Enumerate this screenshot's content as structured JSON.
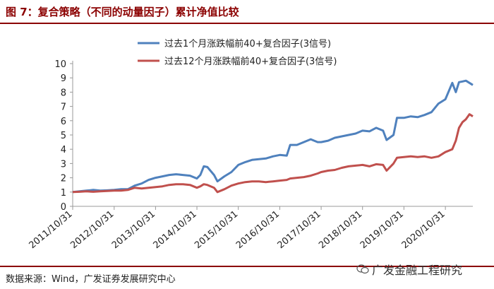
{
  "header": {
    "title": "图 7：复合策略（不同的动量因子）累计净值比较"
  },
  "footer": {
    "source": "数据来源：Wind，广发证券发展研究中心",
    "watermark": "广发金融工程研究"
  },
  "chart_data": {
    "type": "line",
    "title": "",
    "xlabel": "",
    "ylabel": "",
    "ylim": [
      0,
      10
    ],
    "yticks": [
      "0",
      "1",
      "2",
      "3",
      "4",
      "5",
      "6",
      "7",
      "8",
      "9",
      "10"
    ],
    "x_ticks": [
      "2011/10/31",
      "2012/10/31",
      "2013/10/31",
      "2014/10/31",
      "2015/10/31",
      "2016/10/31",
      "2017/10/31",
      "2018/10/31",
      "2019/10/31",
      "2020/10/31"
    ],
    "legend_position": "top",
    "x_range": [
      "2011-10-31",
      "2021-06-30"
    ],
    "series": [
      {
        "name": "过去1个月涨跌幅前40+复合因子(3信号)",
        "color": "#4F81BD",
        "points": [
          [
            "2011-10-31",
            1.0
          ],
          [
            "2011-12-31",
            1.05
          ],
          [
            "2012-02-29",
            1.1
          ],
          [
            "2012-04-30",
            1.15
          ],
          [
            "2012-06-30",
            1.1
          ],
          [
            "2012-08-31",
            1.12
          ],
          [
            "2012-10-31",
            1.15
          ],
          [
            "2012-12-31",
            1.2
          ],
          [
            "2013-02-28",
            1.2
          ],
          [
            "2013-04-30",
            1.45
          ],
          [
            "2013-06-30",
            1.6
          ],
          [
            "2013-08-31",
            1.85
          ],
          [
            "2013-10-31",
            2.0
          ],
          [
            "2013-12-31",
            2.1
          ],
          [
            "2014-02-28",
            2.2
          ],
          [
            "2014-04-30",
            2.25
          ],
          [
            "2014-06-30",
            2.2
          ],
          [
            "2014-08-31",
            2.15
          ],
          [
            "2014-10-31",
            1.95
          ],
          [
            "2014-11-30",
            2.2
          ],
          [
            "2014-12-31",
            2.8
          ],
          [
            "2015-01-31",
            2.75
          ],
          [
            "2015-03-31",
            2.2
          ],
          [
            "2015-04-30",
            1.75
          ],
          [
            "2015-06-30",
            2.1
          ],
          [
            "2015-08-31",
            2.4
          ],
          [
            "2015-10-31",
            2.9
          ],
          [
            "2015-12-31",
            3.1
          ],
          [
            "2016-02-29",
            3.25
          ],
          [
            "2016-04-30",
            3.3
          ],
          [
            "2016-06-30",
            3.35
          ],
          [
            "2016-08-31",
            3.5
          ],
          [
            "2016-10-31",
            3.6
          ],
          [
            "2016-12-31",
            3.55
          ],
          [
            "2017-01-31",
            4.3
          ],
          [
            "2017-03-31",
            4.3
          ],
          [
            "2017-05-31",
            4.5
          ],
          [
            "2017-07-31",
            4.7
          ],
          [
            "2017-09-30",
            4.5
          ],
          [
            "2017-10-31",
            4.5
          ],
          [
            "2017-12-31",
            4.6
          ],
          [
            "2018-02-28",
            4.8
          ],
          [
            "2018-04-30",
            4.9
          ],
          [
            "2018-06-30",
            5.0
          ],
          [
            "2018-08-31",
            5.1
          ],
          [
            "2018-10-31",
            5.3
          ],
          [
            "2018-12-31",
            5.25
          ],
          [
            "2019-02-28",
            5.5
          ],
          [
            "2019-04-30",
            5.3
          ],
          [
            "2019-05-31",
            4.65
          ],
          [
            "2019-07-31",
            5.0
          ],
          [
            "2019-08-31",
            6.2
          ],
          [
            "2019-10-31",
            6.2
          ],
          [
            "2019-12-31",
            6.3
          ],
          [
            "2020-02-29",
            6.25
          ],
          [
            "2020-04-30",
            6.4
          ],
          [
            "2020-06-30",
            6.6
          ],
          [
            "2020-08-31",
            7.2
          ],
          [
            "2020-10-31",
            7.5
          ],
          [
            "2020-12-31",
            8.65
          ],
          [
            "2021-01-31",
            8.0
          ],
          [
            "2021-02-28",
            8.7
          ],
          [
            "2021-03-31",
            8.75
          ],
          [
            "2021-04-30",
            8.8
          ],
          [
            "2021-06-30",
            8.5
          ]
        ]
      },
      {
        "name": "过去12个月涨跌幅前40+复合因子(3信号)",
        "color": "#C0504D",
        "points": [
          [
            "2011-10-31",
            1.0
          ],
          [
            "2011-12-31",
            1.02
          ],
          [
            "2012-02-29",
            1.05
          ],
          [
            "2012-04-30",
            1.02
          ],
          [
            "2012-06-30",
            1.05
          ],
          [
            "2012-08-31",
            1.08
          ],
          [
            "2012-10-31",
            1.1
          ],
          [
            "2012-12-31",
            1.1
          ],
          [
            "2013-02-28",
            1.15
          ],
          [
            "2013-04-30",
            1.3
          ],
          [
            "2013-06-30",
            1.25
          ],
          [
            "2013-08-31",
            1.3
          ],
          [
            "2013-10-31",
            1.35
          ],
          [
            "2013-12-31",
            1.4
          ],
          [
            "2014-02-28",
            1.5
          ],
          [
            "2014-04-30",
            1.55
          ],
          [
            "2014-06-30",
            1.55
          ],
          [
            "2014-08-31",
            1.5
          ],
          [
            "2014-10-31",
            1.3
          ],
          [
            "2014-11-30",
            1.4
          ],
          [
            "2014-12-31",
            1.55
          ],
          [
            "2015-01-31",
            1.5
          ],
          [
            "2015-03-31",
            1.3
          ],
          [
            "2015-04-30",
            1.0
          ],
          [
            "2015-06-30",
            1.2
          ],
          [
            "2015-08-31",
            1.45
          ],
          [
            "2015-10-31",
            1.6
          ],
          [
            "2015-12-31",
            1.7
          ],
          [
            "2016-02-29",
            1.75
          ],
          [
            "2016-04-30",
            1.75
          ],
          [
            "2016-06-30",
            1.7
          ],
          [
            "2016-08-31",
            1.75
          ],
          [
            "2016-10-31",
            1.8
          ],
          [
            "2016-12-31",
            1.85
          ],
          [
            "2017-01-31",
            1.95
          ],
          [
            "2017-03-31",
            2.0
          ],
          [
            "2017-05-31",
            2.05
          ],
          [
            "2017-07-31",
            2.15
          ],
          [
            "2017-09-30",
            2.3
          ],
          [
            "2017-10-31",
            2.4
          ],
          [
            "2017-12-31",
            2.5
          ],
          [
            "2018-02-28",
            2.55
          ],
          [
            "2018-04-30",
            2.7
          ],
          [
            "2018-06-30",
            2.8
          ],
          [
            "2018-08-31",
            2.85
          ],
          [
            "2018-10-31",
            2.9
          ],
          [
            "2018-12-31",
            2.8
          ],
          [
            "2019-02-28",
            2.95
          ],
          [
            "2019-04-30",
            2.9
          ],
          [
            "2019-05-31",
            2.5
          ],
          [
            "2019-07-31",
            3.0
          ],
          [
            "2019-08-31",
            3.4
          ],
          [
            "2019-10-31",
            3.45
          ],
          [
            "2019-12-31",
            3.5
          ],
          [
            "2020-02-29",
            3.45
          ],
          [
            "2020-04-30",
            3.5
          ],
          [
            "2020-06-30",
            3.4
          ],
          [
            "2020-08-31",
            3.5
          ],
          [
            "2020-10-31",
            3.8
          ],
          [
            "2020-12-31",
            4.0
          ],
          [
            "2021-01-31",
            4.6
          ],
          [
            "2021-02-28",
            5.5
          ],
          [
            "2021-03-31",
            5.9
          ],
          [
            "2021-04-30",
            6.1
          ],
          [
            "2021-05-31",
            6.45
          ],
          [
            "2021-06-30",
            6.3
          ]
        ]
      }
    ]
  }
}
